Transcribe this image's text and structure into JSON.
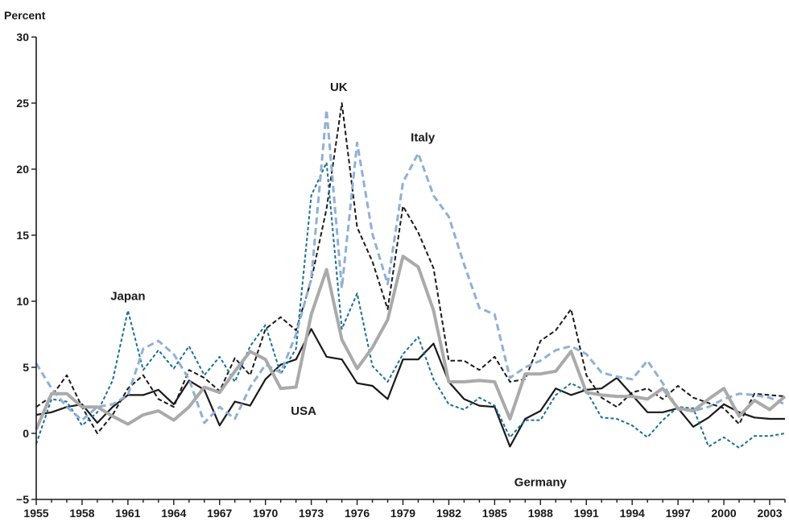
{
  "chart_data": {
    "type": "line",
    "title": "",
    "ylabel": "Percent",
    "xlabel": "",
    "xlim": [
      1955,
      2004
    ],
    "ylim": [
      -5,
      30
    ],
    "x_ticks": [
      1955,
      1958,
      1961,
      1964,
      1967,
      1970,
      1973,
      1976,
      1979,
      1982,
      1985,
      1988,
      1991,
      1994,
      1997,
      2000,
      2003
    ],
    "y_ticks": [
      -5,
      0,
      5,
      10,
      15,
      20,
      25,
      30
    ],
    "grid": false,
    "x": [
      1955,
      1956,
      1957,
      1958,
      1959,
      1960,
      1961,
      1962,
      1963,
      1964,
      1965,
      1966,
      1967,
      1968,
      1969,
      1970,
      1971,
      1972,
      1973,
      1974,
      1975,
      1976,
      1977,
      1978,
      1979,
      1980,
      1981,
      1982,
      1983,
      1984,
      1985,
      1986,
      1987,
      1988,
      1989,
      1990,
      1991,
      1992,
      1993,
      1994,
      1995,
      1996,
      1997,
      1998,
      1999,
      2000,
      2001,
      2002,
      2003,
      2004
    ],
    "series": [
      {
        "name": "USA",
        "color": "#1a1a1a",
        "style": "solid",
        "width": 2.2,
        "values": [
          1.4,
          1.6,
          2.0,
          2.2,
          0.8,
          2.0,
          2.9,
          2.9,
          3.3,
          2.2,
          4.0,
          3.3,
          0.6,
          2.4,
          2.1,
          4.1,
          5.2,
          5.6,
          7.9,
          5.8,
          5.6,
          3.8,
          3.6,
          2.6,
          5.6,
          5.6,
          6.8,
          3.9,
          2.6,
          2.1,
          2.0,
          -1.0,
          1.1,
          1.7,
          3.4,
          2.9,
          3.3,
          3.4,
          4.2,
          2.9,
          1.6,
          1.6,
          1.9,
          0.5,
          1.2,
          2.2,
          1.6,
          1.2,
          1.1,
          1.1
        ]
      },
      {
        "name": "UK",
        "color": "#1a1a1a",
        "style": "dash",
        "width": 2.0,
        "values": [
          2.0,
          2.8,
          4.4,
          2.0,
          0.0,
          1.4,
          3.4,
          4.4,
          2.6,
          2.0,
          4.8,
          4.2,
          3.2,
          5.7,
          4.4,
          7.9,
          8.8,
          7.8,
          11.6,
          17.0,
          25.0,
          15.6,
          13.0,
          9.4,
          17.2,
          15.2,
          12.5,
          5.5,
          5.5,
          4.8,
          5.8,
          3.9,
          4.1,
          7.0,
          7.8,
          9.4,
          4.4,
          2.7,
          2.0,
          3.1,
          3.4,
          2.6,
          3.6,
          2.7,
          2.3,
          1.9,
          0.7,
          3.0,
          2.9,
          2.8
        ]
      },
      {
        "name": "Japan",
        "color": "#1a6f96",
        "style": "shortdash",
        "width": 2.0,
        "values": [
          -0.8,
          2.6,
          2.4,
          0.6,
          1.6,
          4.0,
          9.3,
          4.8,
          6.3,
          4.9,
          6.6,
          4.4,
          5.8,
          3.9,
          6.6,
          8.2,
          4.5,
          6.4,
          18.0,
          20.5,
          7.9,
          10.6,
          5.1,
          3.9,
          6.0,
          7.3,
          4.1,
          2.2,
          1.8,
          2.7,
          2.1,
          -0.3,
          1.0,
          1.0,
          2.9,
          3.8,
          3.2,
          1.2,
          1.1,
          0.6,
          -0.3,
          1.0,
          2.0,
          1.9,
          -1.0,
          -0.3,
          -1.1,
          -0.2,
          -0.2,
          0.0
        ]
      },
      {
        "name": "Italy",
        "color": "#8fb0d6",
        "style": "dash",
        "width": 3.0,
        "values": [
          5.3,
          3.4,
          2.0,
          1.0,
          2.0,
          2.2,
          2.9,
          6.4,
          7.0,
          6.0,
          4.1,
          0.8,
          2.0,
          1.1,
          3.5,
          5.2,
          4.6,
          7.5,
          11.7,
          24.5,
          11.0,
          22.0,
          15.1,
          11.3,
          19.0,
          21.2,
          18.0,
          16.4,
          12.8,
          9.5,
          9.0,
          4.2,
          5.0,
          5.5,
          6.3,
          6.6,
          6.0,
          4.6,
          4.3,
          4.1,
          5.5,
          3.8,
          1.8,
          1.7,
          2.0,
          2.6,
          3.0,
          2.9,
          2.7,
          2.2
        ]
      },
      {
        "name": "Germany",
        "color": "#aaaaaa",
        "style": "solid",
        "width": 4.0,
        "values": [
          0.3,
          3.0,
          3.0,
          2.0,
          2.0,
          1.3,
          0.7,
          1.4,
          1.7,
          1.0,
          2.0,
          3.5,
          3.1,
          4.7,
          6.2,
          5.6,
          3.4,
          3.5,
          9.0,
          12.4,
          7.1,
          4.9,
          6.5,
          8.6,
          13.4,
          12.6,
          9.3,
          3.9,
          3.9,
          4.0,
          3.9,
          1.1,
          4.5,
          4.5,
          4.7,
          6.2,
          3.1,
          2.9,
          2.8,
          2.8,
          2.6,
          3.4,
          1.9,
          1.7,
          2.6,
          3.4,
          1.3,
          2.5,
          1.8,
          2.8
        ]
      }
    ],
    "annotations": [
      {
        "text": "UK",
        "x": 1974.8,
        "y": 25.9,
        "anchor": "middle"
      },
      {
        "text": "Italy",
        "x": 1980.3,
        "y": 22.1,
        "anchor": "middle"
      },
      {
        "text": "Japan",
        "x": 1961.0,
        "y": 10.1,
        "anchor": "middle"
      },
      {
        "text": "USA",
        "x": 1972.5,
        "y": 1.4,
        "anchor": "middle"
      },
      {
        "text": "Germany",
        "x": 1988.0,
        "y": -4.0,
        "anchor": "middle"
      }
    ]
  }
}
